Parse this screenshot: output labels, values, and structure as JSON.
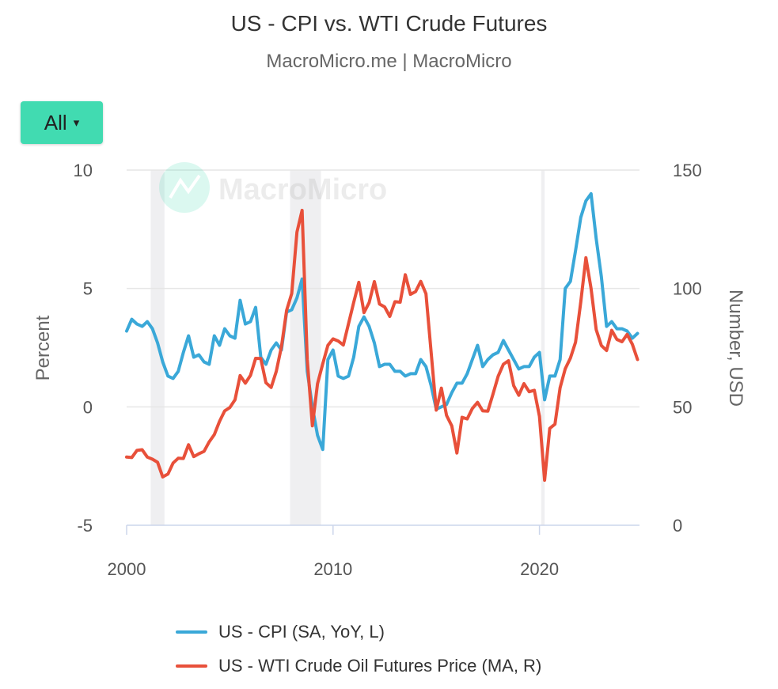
{
  "header": {
    "title": "US - CPI vs. WTI Crude Futures",
    "subtitle": "MacroMicro.me | MacroMicro"
  },
  "range_selector": {
    "label": "All",
    "caret": "▾"
  },
  "watermark": "MacroMicro",
  "chart_data": {
    "type": "line",
    "title": "US - CPI vs. WTI Crude Futures",
    "xlim": [
      2000,
      2025
    ],
    "x_ticks": [
      "2000",
      "2010",
      "2020"
    ],
    "y_left": {
      "label": "Percent",
      "lim": [
        -5,
        10
      ],
      "ticks": [
        "10",
        "5",
        "0",
        "-5"
      ]
    },
    "y_right": {
      "label": "Number, USD",
      "lim": [
        0,
        150
      ],
      "ticks": [
        "150",
        "100",
        "50",
        "0"
      ]
    },
    "grid": true,
    "legend_position": "bottom",
    "recessions": [
      [
        "2001-03",
        "2001-11"
      ],
      [
        "2007-12",
        "2009-06"
      ],
      [
        "2020-02",
        "2020-04"
      ]
    ],
    "x": [
      "2000-Q1",
      "2000-Q2",
      "2000-Q3",
      "2000-Q4",
      "2001-Q1",
      "2001-Q2",
      "2001-Q3",
      "2001-Q4",
      "2002-Q1",
      "2002-Q2",
      "2002-Q3",
      "2002-Q4",
      "2003-Q1",
      "2003-Q2",
      "2003-Q3",
      "2003-Q4",
      "2004-Q1",
      "2004-Q2",
      "2004-Q3",
      "2004-Q4",
      "2005-Q1",
      "2005-Q2",
      "2005-Q3",
      "2005-Q4",
      "2006-Q1",
      "2006-Q2",
      "2006-Q3",
      "2006-Q4",
      "2007-Q1",
      "2007-Q2",
      "2007-Q3",
      "2007-Q4",
      "2008-Q1",
      "2008-Q2",
      "2008-Q3",
      "2008-Q4",
      "2009-Q1",
      "2009-Q2",
      "2009-Q3",
      "2009-Q4",
      "2010-Q1",
      "2010-Q2",
      "2010-Q3",
      "2010-Q4",
      "2011-Q1",
      "2011-Q2",
      "2011-Q3",
      "2011-Q4",
      "2012-Q1",
      "2012-Q2",
      "2012-Q3",
      "2012-Q4",
      "2013-Q1",
      "2013-Q2",
      "2013-Q3",
      "2013-Q4",
      "2014-Q1",
      "2014-Q2",
      "2014-Q3",
      "2014-Q4",
      "2015-Q1",
      "2015-Q2",
      "2015-Q3",
      "2015-Q4",
      "2016-Q1",
      "2016-Q2",
      "2016-Q3",
      "2016-Q4",
      "2017-Q1",
      "2017-Q2",
      "2017-Q3",
      "2017-Q4",
      "2018-Q1",
      "2018-Q2",
      "2018-Q3",
      "2018-Q4",
      "2019-Q1",
      "2019-Q2",
      "2019-Q3",
      "2019-Q4",
      "2020-Q1",
      "2020-Q2",
      "2020-Q3",
      "2020-Q4",
      "2021-Q1",
      "2021-Q2",
      "2021-Q3",
      "2021-Q4",
      "2022-Q1",
      "2022-Q2",
      "2022-Q3",
      "2022-Q4",
      "2023-Q1",
      "2023-Q2",
      "2023-Q3",
      "2023-Q4",
      "2024-Q1",
      "2024-Q2",
      "2024-Q3",
      "2024-Q4"
    ],
    "series": [
      {
        "name": "US - CPI (SA, YoY, L)",
        "axis": "left",
        "color": "#3aa8d8",
        "values": [
          3.2,
          3.7,
          3.5,
          3.4,
          3.6,
          3.3,
          2.7,
          1.9,
          1.3,
          1.2,
          1.5,
          2.3,
          3.0,
          2.1,
          2.2,
          1.9,
          1.8,
          3.0,
          2.6,
          3.3,
          3.0,
          2.9,
          4.5,
          3.5,
          3.6,
          4.2,
          2.1,
          1.8,
          2.4,
          2.7,
          2.4,
          4.0,
          4.1,
          4.6,
          5.4,
          1.5,
          0.0,
          -1.2,
          -1.8,
          2.0,
          2.4,
          1.3,
          1.2,
          1.3,
          2.1,
          3.4,
          3.8,
          3.4,
          2.7,
          1.7,
          1.8,
          1.8,
          1.5,
          1.5,
          1.3,
          1.4,
          1.4,
          2.0,
          1.7,
          0.9,
          -0.1,
          0.0,
          0.1,
          0.6,
          1.0,
          1.0,
          1.4,
          2.0,
          2.6,
          1.7,
          2.0,
          2.2,
          2.3,
          2.8,
          2.4,
          2.0,
          1.6,
          1.7,
          1.7,
          2.1,
          2.3,
          0.3,
          1.3,
          1.3,
          2.0,
          5.0,
          5.3,
          6.6,
          8.0,
          8.7,
          9.0,
          7.1,
          5.5,
          3.4,
          3.6,
          3.3,
          3.3,
          3.2,
          2.9,
          3.1
        ]
      },
      {
        "name": "US - WTI Crude Oil Futures Price (MA, R)",
        "axis": "right",
        "color": "#e8503a",
        "values": [
          28.8,
          28.6,
          31.6,
          31.9,
          28.8,
          27.9,
          26.6,
          20.4,
          21.6,
          26.3,
          28.3,
          28.2,
          34.0,
          29.0,
          30.2,
          31.2,
          35.2,
          38.3,
          43.9,
          48.3,
          49.7,
          53.0,
          63.2,
          60.0,
          63.3,
          70.5,
          70.4,
          60.2,
          58.2,
          65.0,
          75.4,
          90.7,
          97.9,
          123.8,
          133.0,
          70.0,
          42.0,
          59.8,
          68.2,
          76.0,
          78.7,
          77.8,
          76.1,
          85.2,
          94.1,
          102.6,
          89.8,
          94.0,
          102.9,
          93.4,
          92.2,
          88.2,
          94.4,
          94.2,
          105.8,
          97.5,
          98.7,
          103.0,
          97.8,
          73.2,
          48.6,
          57.9,
          46.4,
          42.0,
          30.5,
          45.6,
          44.9,
          49.3,
          51.9,
          48.3,
          48.2,
          55.4,
          62.9,
          68.0,
          69.5,
          59.0,
          54.9,
          59.8,
          56.4,
          57.0,
          46.0,
          19.0,
          40.9,
          42.7,
          58.1,
          66.1,
          70.6,
          77.3,
          94.3,
          113.0,
          100.0,
          82.6,
          75.9,
          73.8,
          82.3,
          78.5,
          77.5,
          80.6,
          76.4,
          70.0
        ]
      }
    ]
  }
}
